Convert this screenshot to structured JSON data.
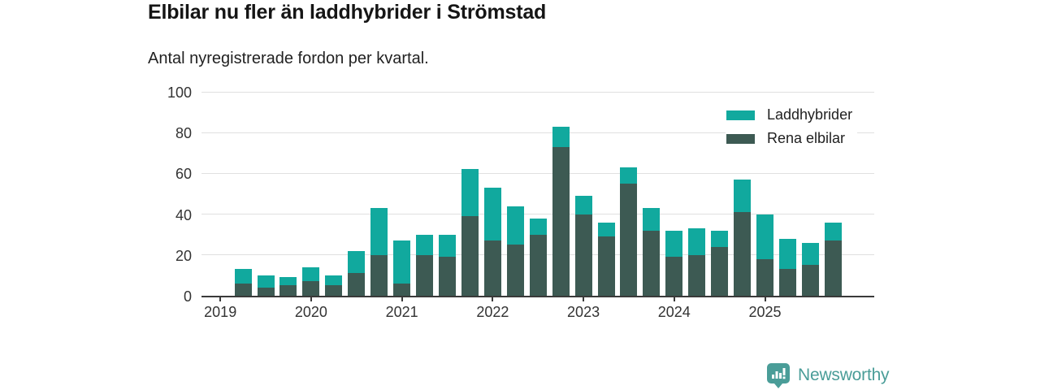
{
  "header": {
    "title": "Elbilar nu fler än laddhybrider i Strömstad",
    "subtitle": "Antal nyregistrerade fordon per kvartal."
  },
  "legend": [
    {
      "label": "Laddhybrider",
      "color": "#11a99e"
    },
    {
      "label": "Rena elbilar",
      "color": "#3d5a53"
    }
  ],
  "footer": {
    "brand": "Newsworthy",
    "brand_color": "#4a9d98"
  },
  "colors": {
    "laddhybrider": "#11a99e",
    "rena_elbilar": "#3d5a53",
    "axis": "#3a3a3a",
    "grid": "#e0e0e0",
    "text": "#333333"
  },
  "chart_data": {
    "type": "bar",
    "stacked": true,
    "title": "Elbilar nu fler än laddhybrider i Strömstad",
    "subtitle": "Antal nyregistrerade fordon per kvartal.",
    "xlabel": "",
    "ylabel": "",
    "ylim": [
      0,
      100
    ],
    "yticks": [
      0,
      20,
      40,
      60,
      80,
      100
    ],
    "grid": "horizontal",
    "legend_position": "top-right",
    "categories": [
      "2019 Q2",
      "2019 Q3",
      "2019 Q4",
      "2020 Q1",
      "2020 Q2",
      "2020 Q3",
      "2020 Q4",
      "2021 Q1",
      "2021 Q2",
      "2021 Q3",
      "2021 Q4",
      "2022 Q1",
      "2022 Q2",
      "2022 Q3",
      "2022 Q4",
      "2023 Q1",
      "2023 Q2",
      "2023 Q3",
      "2023 Q4",
      "2024 Q1",
      "2024 Q2",
      "2024 Q3",
      "2024 Q4",
      "2025 Q1",
      "2025 Q2",
      "2025 Q3",
      "2025 Q4"
    ],
    "series": [
      {
        "name": "Rena elbilar",
        "color": "#3d5a53",
        "values": [
          6,
          4,
          5,
          7,
          5,
          11,
          20,
          6,
          20,
          19,
          39,
          27,
          25,
          30,
          73,
          40,
          29,
          55,
          32,
          19,
          20,
          24,
          41,
          18,
          13,
          15,
          27
        ]
      },
      {
        "name": "Laddhybrider",
        "color": "#11a99e",
        "values": [
          7,
          6,
          4,
          7,
          5,
          11,
          23,
          21,
          10,
          11,
          23,
          26,
          19,
          8,
          10,
          9,
          7,
          8,
          11,
          13,
          13,
          8,
          16,
          22,
          15,
          11,
          9
        ]
      }
    ],
    "totals": [
      13,
      10,
      9,
      14,
      10,
      22,
      43,
      27,
      30,
      30,
      62,
      53,
      44,
      38,
      83,
      49,
      36,
      63,
      43,
      32,
      33,
      32,
      57,
      40,
      28,
      26,
      36
    ],
    "x_year_ticks": [
      {
        "label": "2019",
        "band": 0
      },
      {
        "label": "2020",
        "band": 4
      },
      {
        "label": "2021",
        "band": 8
      },
      {
        "label": "2022",
        "band": 12
      },
      {
        "label": "2023",
        "band": 16
      },
      {
        "label": "2024",
        "band": 20
      },
      {
        "label": "2025",
        "band": 24
      }
    ]
  }
}
